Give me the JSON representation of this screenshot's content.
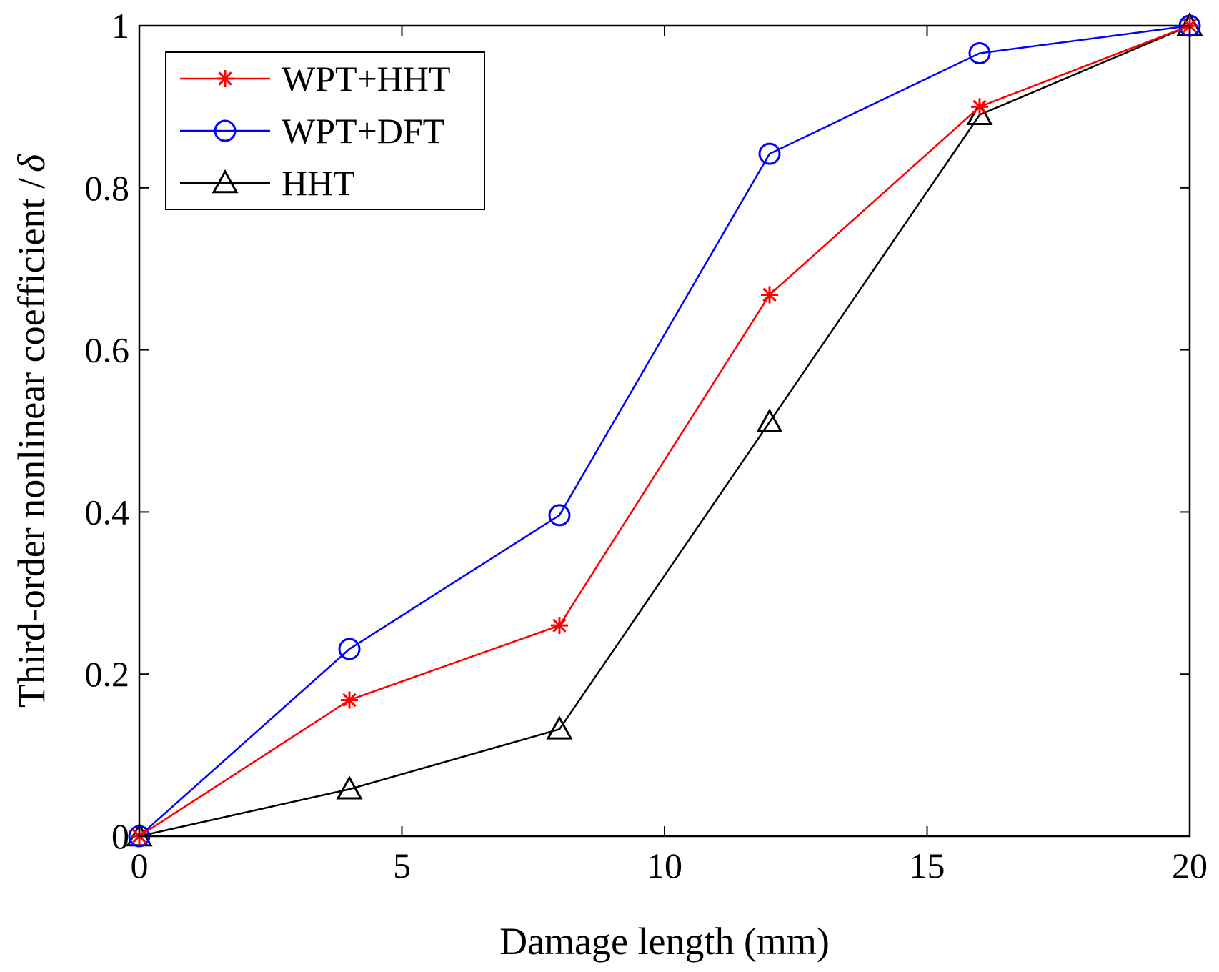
{
  "chart_data": {
    "type": "line",
    "title": "",
    "xlabel": "Damage length (mm)",
    "ylabel_main": "Third-order nonlinear coefficient /",
    "ylabel_symbol": "δ",
    "x": [
      0,
      4,
      8,
      12,
      16,
      20
    ],
    "xlim": [
      0,
      20
    ],
    "ylim": [
      0,
      1
    ],
    "xticks": [
      0,
      5,
      10,
      15,
      20
    ],
    "xtick_labels": [
      "0",
      "5",
      "10",
      "15",
      "20"
    ],
    "yticks": [
      0,
      0.2,
      0.4,
      0.6,
      0.8,
      1
    ],
    "ytick_labels": [
      "0",
      "0.2",
      "0.4",
      "0.6",
      "0.8",
      "1"
    ],
    "grid": false,
    "legend_position": "top-left",
    "series": [
      {
        "name": "WPT+HHT",
        "color": "#ff0000",
        "marker": "asterisk",
        "values": [
          0,
          0.168,
          0.26,
          0.668,
          0.9,
          1.0
        ]
      },
      {
        "name": "WPT+DFT",
        "color": "#0000ff",
        "marker": "circle",
        "values": [
          0,
          0.231,
          0.396,
          0.842,
          0.966,
          1.0
        ]
      },
      {
        "name": "HHT",
        "color": "#000000",
        "marker": "triangle",
        "values": [
          0,
          0.058,
          0.132,
          0.511,
          0.89,
          1.0
        ]
      }
    ]
  }
}
